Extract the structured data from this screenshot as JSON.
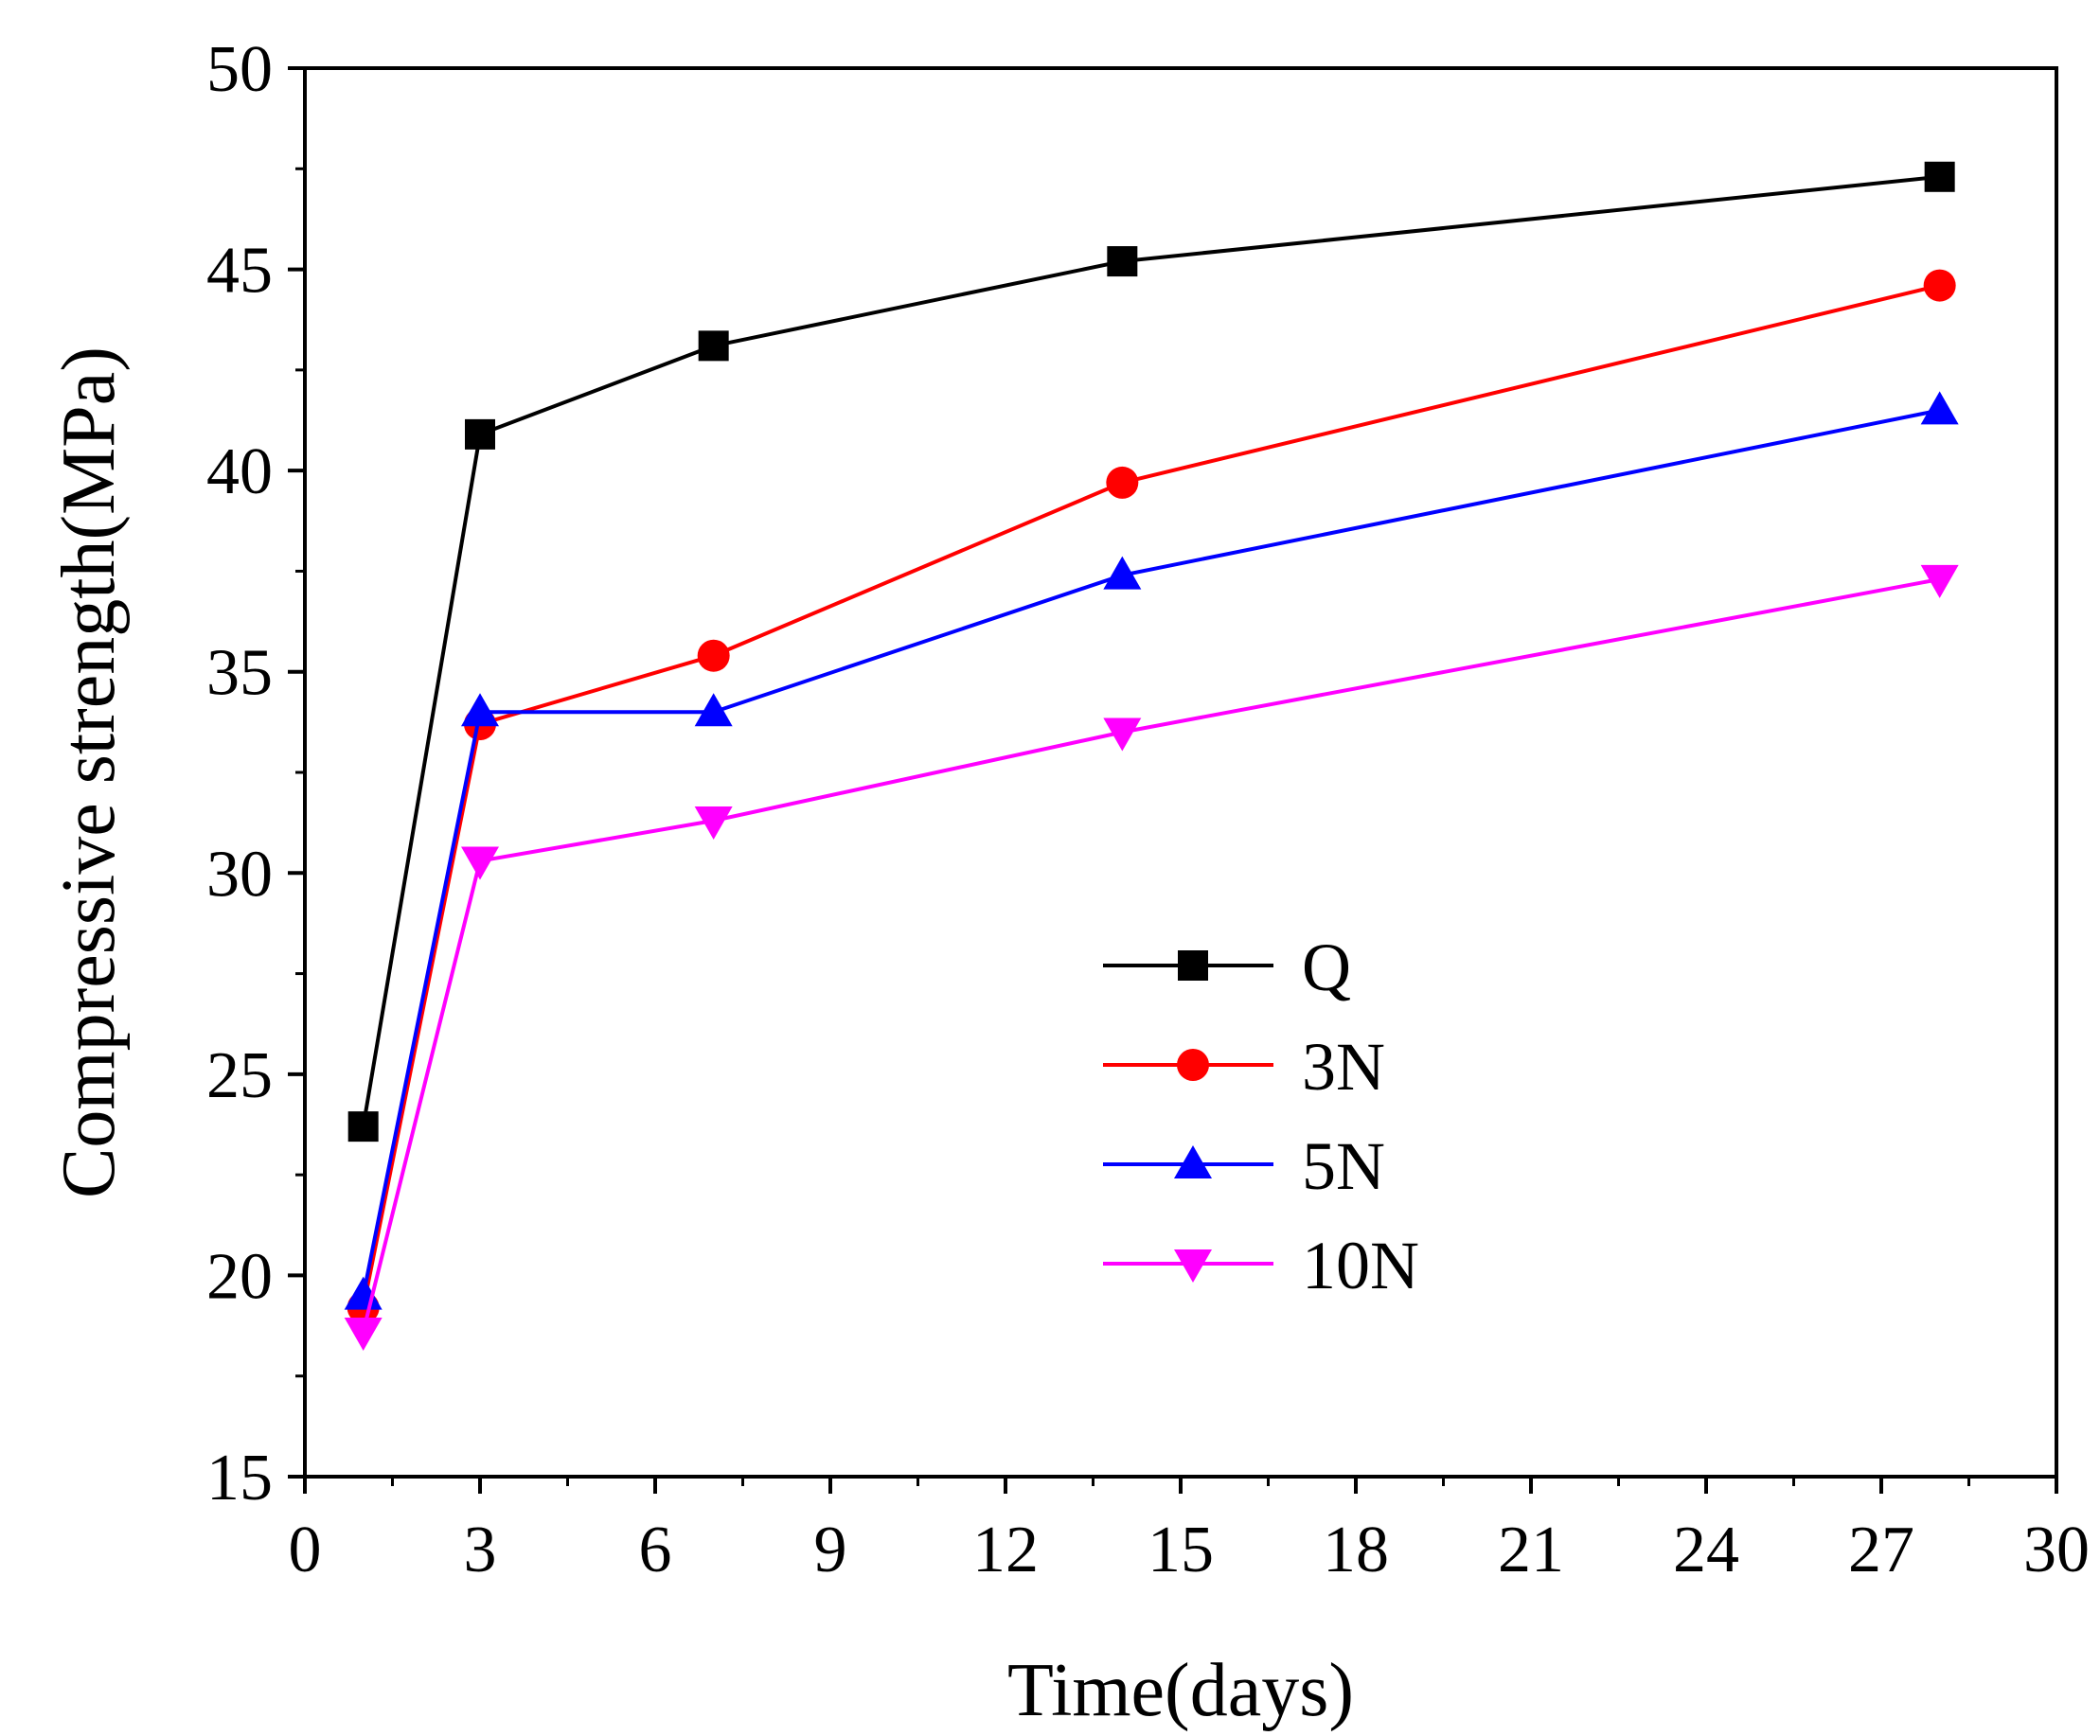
{
  "chart_data": {
    "type": "line",
    "title": "",
    "xlabel": "Time(days)",
    "ylabel": "Compressive strength(MPa)",
    "xlim": [
      0,
      30
    ],
    "ylim": [
      15,
      50
    ],
    "xticks": [
      0,
      3,
      6,
      9,
      12,
      15,
      18,
      21,
      24,
      27,
      30
    ],
    "yticks": [
      15,
      20,
      25,
      30,
      35,
      40,
      45,
      50
    ],
    "x": [
      1,
      3,
      7,
      14,
      28
    ],
    "legend_position": "center-right",
    "series": [
      {
        "name": "Q",
        "color": "#000000",
        "marker": "square",
        "values": [
          23.7,
          40.9,
          43.1,
          45.2,
          47.3
        ]
      },
      {
        "name": "3N",
        "color": "#ff0000",
        "marker": "circle",
        "values": [
          19.2,
          33.7,
          35.4,
          39.7,
          44.6
        ]
      },
      {
        "name": "5N",
        "color": "#0000ff",
        "marker": "triangle-up",
        "values": [
          19.5,
          34.0,
          34.0,
          37.4,
          41.5
        ]
      },
      {
        "name": "10N",
        "color": "#ff00ff",
        "marker": "triangle-down",
        "values": [
          18.6,
          30.3,
          31.3,
          33.5,
          37.3
        ]
      }
    ]
  }
}
